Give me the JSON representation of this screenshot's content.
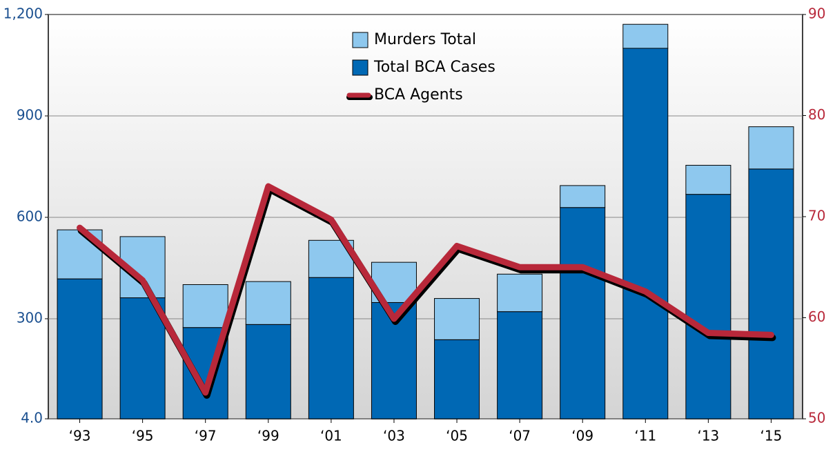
{
  "chart_data": {
    "type": "bar-line",
    "categories": [
      "‘93",
      "‘95",
      "‘97",
      "‘99",
      "‘01",
      "‘03",
      "‘05",
      "‘07",
      "‘09",
      "‘11",
      "‘13",
      "‘15"
    ],
    "series": [
      {
        "name": "Murders Total",
        "type": "bar",
        "color": "#8ec8ee",
        "values": [
          145,
          181,
          127,
          127,
          110,
          119,
          122,
          111,
          65,
          71,
          86,
          125
        ]
      },
      {
        "name": "Total BCA Cases",
        "type": "bar",
        "color": "#0068b4",
        "values": [
          418,
          362,
          274,
          283,
          422,
          348,
          238,
          321,
          629,
          1100,
          668,
          743
        ]
      },
      {
        "name": "BCA Agents",
        "type": "line",
        "axis": "y2",
        "color": "#b8283a",
        "values": [
          68.9,
          63.7,
          52.6,
          73.0,
          69.7,
          59.9,
          67.1,
          65.0,
          65.0,
          62.6,
          58.5,
          58.3
        ]
      }
    ],
    "ylim": [
      4,
      1200
    ],
    "yticks": [
      {
        "value": 4,
        "label": "4.0"
      },
      300,
      600,
      900,
      {
        "value": 1200,
        "label": "1,200"
      }
    ],
    "y2lim": [
      50,
      90
    ],
    "y2ticks": [
      50,
      60,
      70,
      80,
      90
    ],
    "grid": true
  }
}
